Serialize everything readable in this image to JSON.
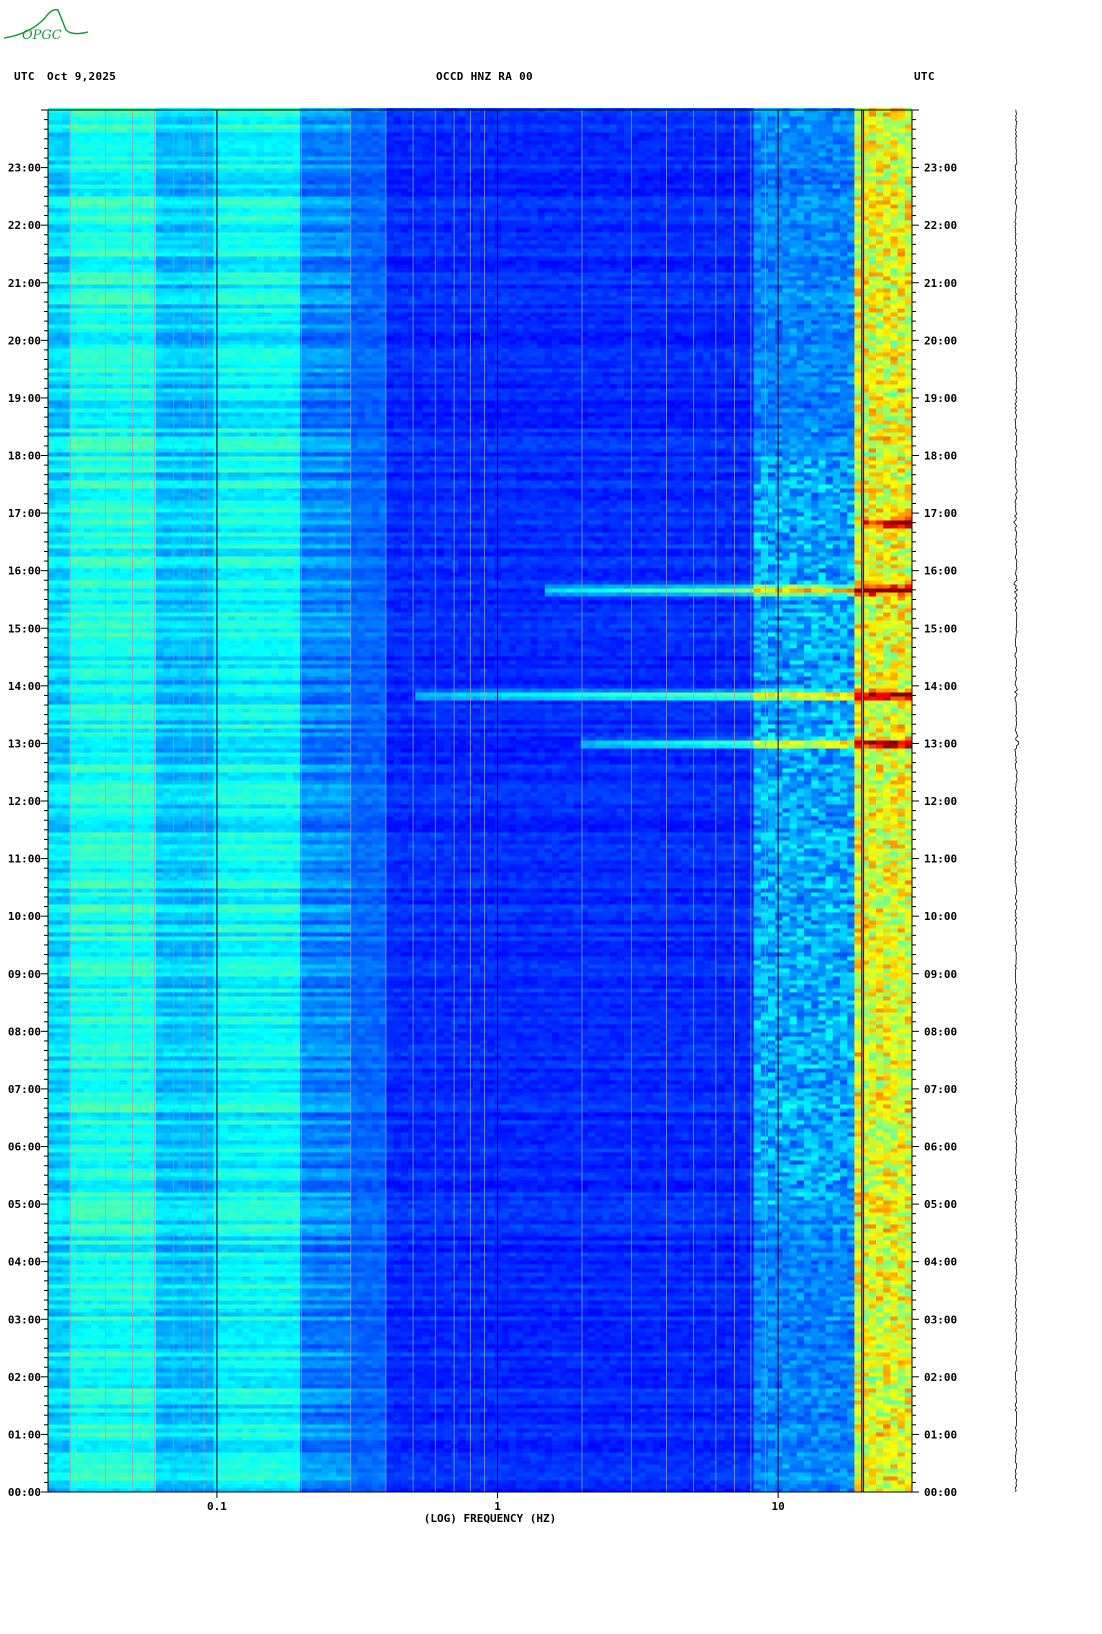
{
  "logo": {
    "text": "OPGC",
    "color": "#1d9a3c"
  },
  "header": {
    "left_tz": "UTC",
    "date": "Oct 9,2025",
    "station": "OCCD HNZ RA 00",
    "right_tz": "UTC"
  },
  "chart_data": {
    "type": "heatmap",
    "title": "OCCD HNZ RA 00",
    "xlabel": "(LOG) FREQUENCY (HZ)",
    "x_scale": "log",
    "xlim": [
      0.025,
      30
    ],
    "x_ticks": [
      {
        "value": 0.1,
        "label": "0.1"
      },
      {
        "value": 1,
        "label": "1"
      },
      {
        "value": 10,
        "label": "10"
      }
    ],
    "y_ticks": [
      "00:00",
      "01:00",
      "02:00",
      "03:00",
      "04:00",
      "05:00",
      "06:00",
      "07:00",
      "08:00",
      "09:00",
      "10:00",
      "11:00",
      "12:00",
      "13:00",
      "14:00",
      "15:00",
      "16:00",
      "17:00",
      "18:00",
      "19:00",
      "20:00",
      "21:00",
      "22:00",
      "23:00"
    ],
    "ylim_hours": [
      0,
      24
    ],
    "colormap": [
      "#00008f",
      "#0000ff",
      "#0080ff",
      "#00ffff",
      "#80ff80",
      "#ffff00",
      "#ff8000",
      "#ff0000",
      "#800000"
    ],
    "events": [
      {
        "time": "13:00",
        "fmin": 2.0,
        "fmax": 30
      },
      {
        "time": "13:50",
        "fmin": 0.5,
        "fmax": 30
      },
      {
        "time": "15:40",
        "fmin": 1.5,
        "fmax": 30
      },
      {
        "time": "16:50",
        "fmin": 20,
        "fmax": 30
      }
    ],
    "persistent_line_hz": 20
  }
}
